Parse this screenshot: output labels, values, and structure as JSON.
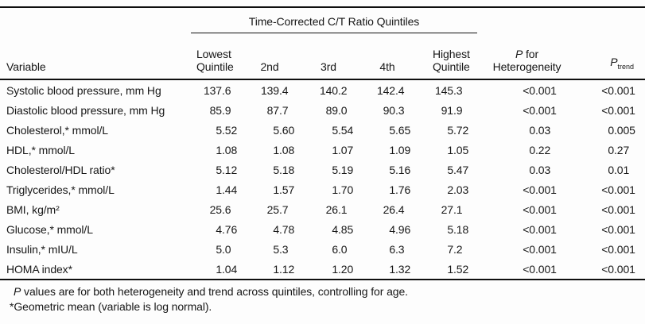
{
  "table": {
    "spanner_title": "Time-Corrected C/T Ratio Quintiles",
    "columns": {
      "variable": "Variable",
      "q1": "Lowest Quintile",
      "q2": "2nd",
      "q3": "3rd",
      "q4": "4th",
      "q5": "Highest Quintile",
      "p_het_italic": "P",
      "p_het_rest": "for Heterogeneity",
      "p_trend_italic": "P",
      "p_trend_sub": "trend"
    },
    "rows": [
      {
        "label": "Systolic blood pressure, mm Hg",
        "values": [
          "137.6",
          "139.4",
          "140.2",
          "142.4",
          "145.3"
        ],
        "p_heterogeneity": "<0.001",
        "p_trend": "<0.001"
      },
      {
        "label": "Diastolic blood pressure, mm Hg",
        "values": [
          "85.9",
          "87.7",
          "89.0",
          "90.3",
          "91.9"
        ],
        "p_heterogeneity": "<0.001",
        "p_trend": "<0.001"
      },
      {
        "label": "Cholesterol,* mmol/L",
        "values": [
          "5.52",
          "5.60",
          "5.54",
          "5.65",
          "5.72"
        ],
        "p_heterogeneity": "0.03",
        "p_trend": "0.005"
      },
      {
        "label": "HDL,* mmol/L",
        "values": [
          "1.08",
          "1.08",
          "1.07",
          "1.09",
          "1.05"
        ],
        "p_heterogeneity": "0.22",
        "p_trend": "0.27"
      },
      {
        "label": "Cholesterol/HDL ratio*",
        "values": [
          "5.12",
          "5.18",
          "5.19",
          "5.16",
          "5.47"
        ],
        "p_heterogeneity": "0.03",
        "p_trend": "0.01"
      },
      {
        "label": "Triglycerides,* mmol/L",
        "values": [
          "1.44",
          "1.57",
          "1.70",
          "1.76",
          "2.03"
        ],
        "p_heterogeneity": "<0.001",
        "p_trend": "<0.001"
      },
      {
        "label": "BMI, kg/m²",
        "values": [
          "25.6",
          "25.7",
          "26.1",
          "26.4",
          "27.1"
        ],
        "p_heterogeneity": "<0.001",
        "p_trend": "<0.001"
      },
      {
        "label": "Glucose,* mmol/L",
        "values": [
          "4.76",
          "4.78",
          "4.85",
          "4.96",
          "5.18"
        ],
        "p_heterogeneity": "<0.001",
        "p_trend": "<0.001"
      },
      {
        "label": "Insulin,* mIU/L",
        "values": [
          "5.0",
          "5.3",
          "6.0",
          "6.3",
          "7.2"
        ],
        "p_heterogeneity": "<0.001",
        "p_trend": "<0.001"
      },
      {
        "label": "HOMA index*",
        "values": [
          "1.04",
          "1.12",
          "1.20",
          "1.32",
          "1.52"
        ],
        "p_heterogeneity": "<0.001",
        "p_trend": "<0.001"
      }
    ]
  },
  "footnotes": {
    "note1_italic": "P",
    "note1_rest": " values are for both heterogeneity and trend across quintiles, controlling for age.",
    "note2": "*Geometric mean (variable is log normal)."
  },
  "colors": {
    "text": "#171717",
    "rule": "#0f0f0f",
    "background": "#fdfdfd"
  }
}
